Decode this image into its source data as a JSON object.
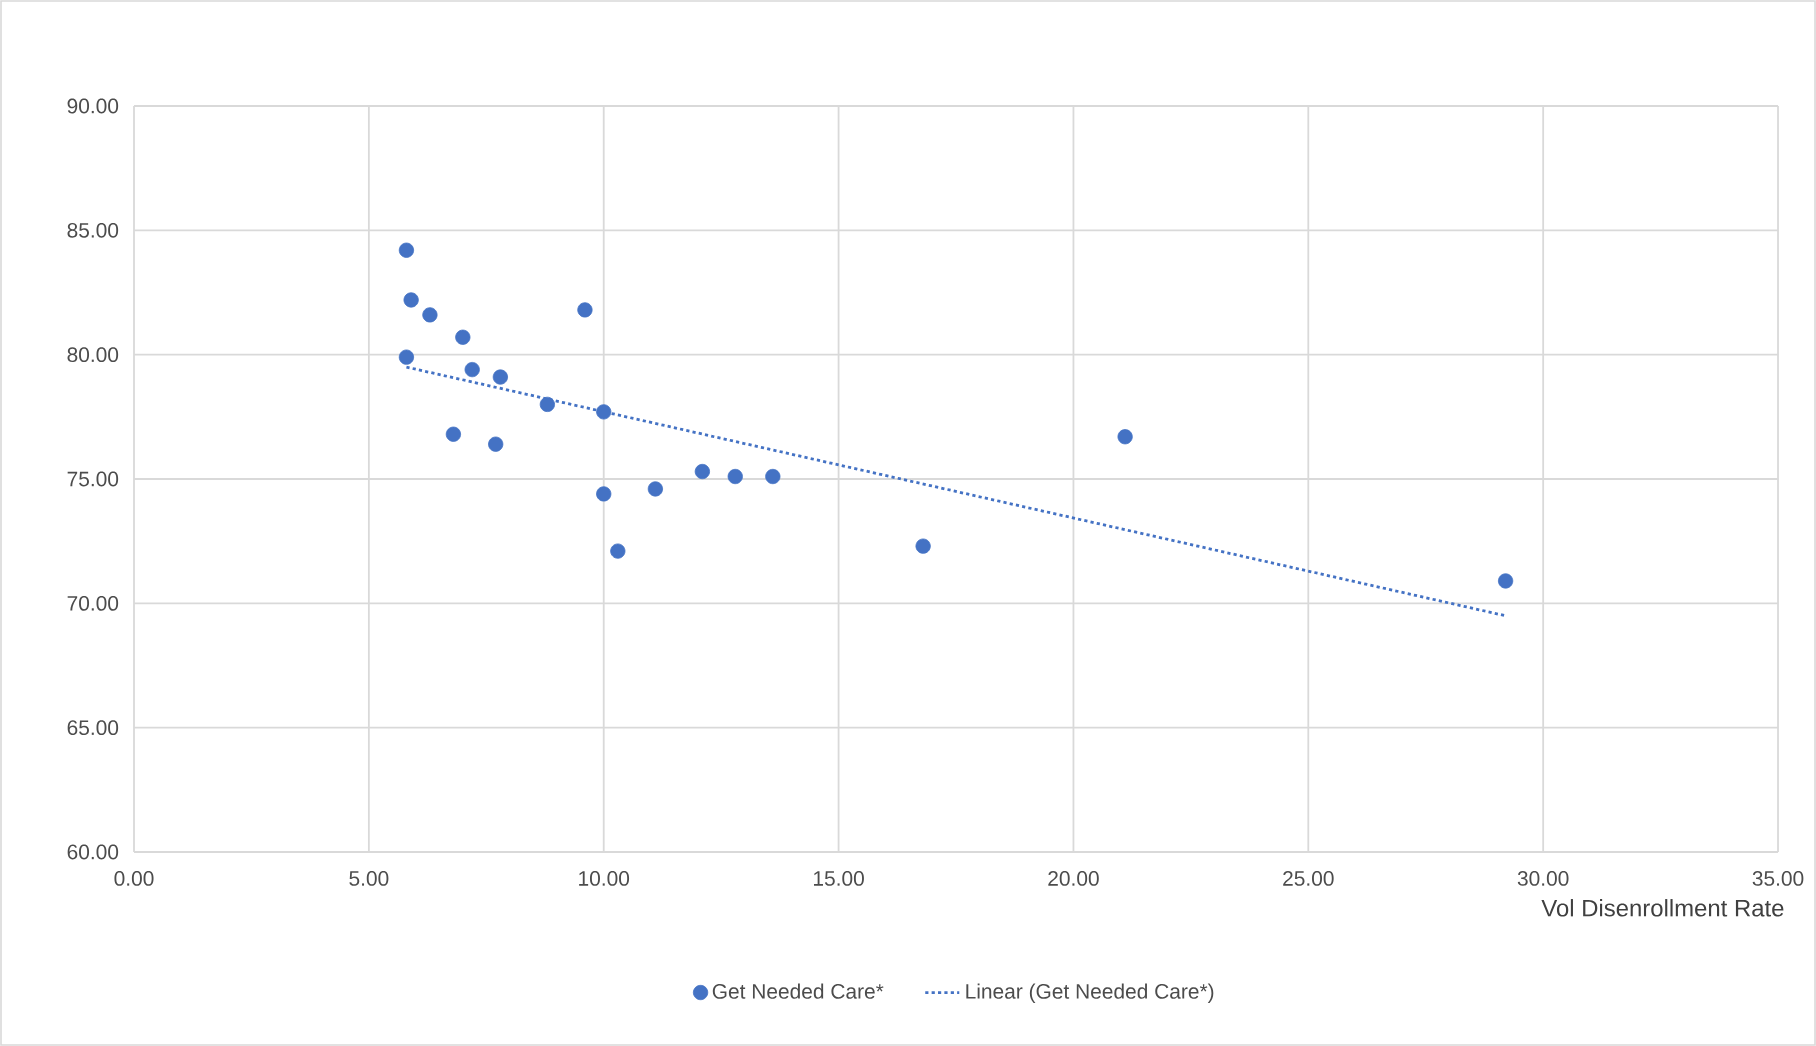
{
  "chart_data": {
    "type": "scatter",
    "xlabel": "Vol Disenrollment Rate",
    "xlim": [
      0,
      35
    ],
    "ylim": [
      60,
      90
    ],
    "xticks": [
      {
        "value": 0,
        "label": "0.00"
      },
      {
        "value": 5,
        "label": "5.00"
      },
      {
        "value": 10,
        "label": "10.00"
      },
      {
        "value": 15,
        "label": "15.00"
      },
      {
        "value": 20,
        "label": "20.00"
      },
      {
        "value": 25,
        "label": "25.00"
      },
      {
        "value": 30,
        "label": "30.00"
      },
      {
        "value": 35,
        "label": "35.00"
      }
    ],
    "yticks": [
      {
        "value": 60,
        "label": "60.00"
      },
      {
        "value": 65,
        "label": "65.00"
      },
      {
        "value": 70,
        "label": "70.00"
      },
      {
        "value": 75,
        "label": "75.00"
      },
      {
        "value": 80,
        "label": "80.00"
      },
      {
        "value": 85,
        "label": "85.00"
      },
      {
        "value": 90,
        "label": "90.00"
      }
    ],
    "grid": true,
    "legend": "bottom",
    "series": [
      {
        "name": "Get Needed Care*",
        "color": "#4472c4",
        "marker": "circle",
        "x": [
          5.8,
          5.9,
          6.3,
          7.0,
          5.8,
          7.2,
          7.8,
          9.6,
          8.8,
          10.0,
          6.8,
          7.7,
          10.0,
          11.1,
          12.1,
          12.8,
          13.6,
          10.3,
          16.8,
          21.1,
          29.2
        ],
        "values": [
          84.2,
          82.2,
          81.6,
          80.7,
          79.9,
          79.4,
          79.1,
          81.8,
          78.0,
          77.7,
          76.8,
          76.4,
          74.4,
          74.6,
          75.3,
          75.1,
          75.1,
          72.1,
          72.3,
          76.7,
          70.9
        ]
      },
      {
        "name": "Linear (Get Needed Care*)",
        "type": "line",
        "color": "#4472c4",
        "marker": "none",
        "line_style": "dotted",
        "x": [
          5.8,
          29.2
        ],
        "values": [
          79.5,
          69.5
        ]
      }
    ]
  }
}
